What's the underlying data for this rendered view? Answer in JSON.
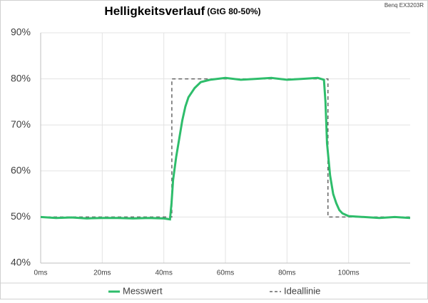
{
  "chart_data": {
    "type": "line",
    "title": "Helligkeitsverlauf",
    "subtitle": "(GtG 80-50%)",
    "annotation": "Benq EX3203R",
    "xlim": [
      0,
      120
    ],
    "xticks": [
      {
        "value": 0,
        "label": "0ms"
      },
      {
        "value": 20,
        "label": "20ms"
      },
      {
        "value": 40,
        "label": "40ms"
      },
      {
        "value": 60,
        "label": "60ms"
      },
      {
        "value": 80,
        "label": "80ms"
      },
      {
        "value": 100,
        "label": "100ms"
      }
    ],
    "ylim": [
      40,
      90
    ],
    "yticks": [
      {
        "value": 40,
        "label": "40%"
      },
      {
        "value": 50,
        "label": "50%"
      },
      {
        "value": 60,
        "label": "60%"
      },
      {
        "value": 70,
        "label": "70%"
      },
      {
        "value": 80,
        "label": "80%"
      },
      {
        "value": 90,
        "label": "90%"
      }
    ],
    "grid": true,
    "legend": "bottom",
    "series": [
      {
        "name": "Messwert",
        "color": "#2ebd6b",
        "dash": false,
        "x": [
          0,
          5,
          10,
          15,
          20,
          25,
          30,
          35,
          40,
          42,
          42.5,
          43,
          44,
          45,
          46,
          47,
          48,
          50,
          52,
          55,
          60,
          65,
          70,
          75,
          80,
          85,
          90,
          92,
          92.5,
          93,
          94,
          95,
          96,
          97,
          98,
          100,
          105,
          110,
          115,
          120
        ],
        "values": [
          50,
          49.8,
          49.9,
          49.7,
          49.8,
          49.8,
          49.7,
          49.8,
          49.7,
          49.5,
          53,
          58,
          63,
          67,
          71,
          74,
          76,
          78,
          79.3,
          79.8,
          80.2,
          79.8,
          80,
          80.2,
          79.8,
          80,
          80.2,
          79.8,
          75,
          66,
          59,
          55,
          53,
          51.5,
          50.8,
          50.2,
          50,
          49.8,
          50,
          49.8
        ]
      },
      {
        "name": "Ideallinie",
        "color": "#666666",
        "dash": true,
        "x": [
          0,
          42.6,
          42.6,
          93.3,
          93.3,
          120
        ],
        "values": [
          50,
          50,
          80,
          80,
          50,
          50
        ]
      }
    ]
  }
}
